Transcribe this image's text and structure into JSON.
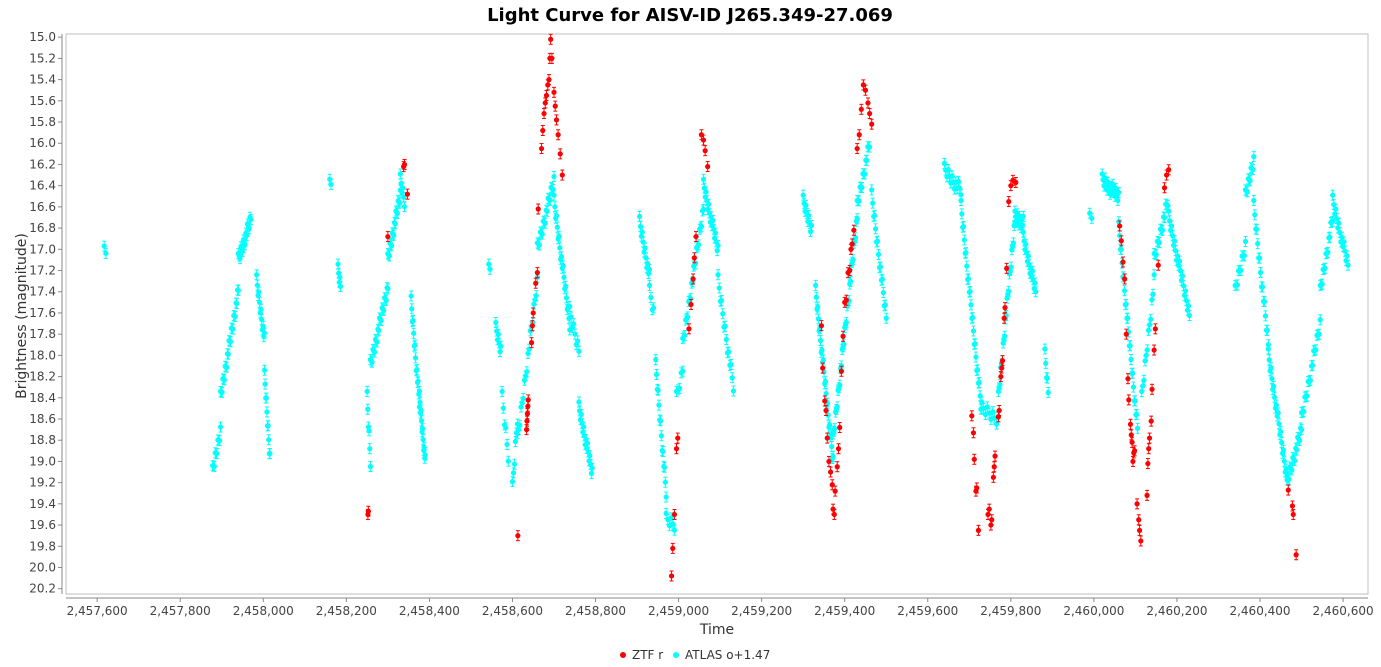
{
  "chart_data": {
    "type": "scatter",
    "title": "Light Curve for AISV-ID J265.349-27.069",
    "xlabel": "Time",
    "ylabel": "Brightness (magnitude)",
    "xlim": [
      2457525,
      2460660
    ],
    "ylim": [
      20.25,
      14.97
    ],
    "y_inverted": true,
    "x_ticks": [
      2457600,
      2457800,
      2458000,
      2458200,
      2458400,
      2458600,
      2458800,
      2459000,
      2459200,
      2459400,
      2459600,
      2459800,
      2460000,
      2460200,
      2460400,
      2460600
    ],
    "x_tick_labels": [
      "2,457,600",
      "2,457,800",
      "2,458,000",
      "2,458,200",
      "2,458,400",
      "2,458,600",
      "2,458,800",
      "2,459,000",
      "2,459,200",
      "2,459,400",
      "2,459,600",
      "2,459,800",
      "2,460,000",
      "2,460,200",
      "2,460,400",
      "2,460,600"
    ],
    "y_ticks": [
      15.0,
      15.2,
      15.4,
      15.6,
      15.8,
      16.0,
      16.2,
      16.4,
      16.6,
      16.8,
      17.0,
      17.2,
      17.4,
      17.6,
      17.8,
      18.0,
      18.2,
      18.4,
      18.6,
      18.8,
      19.0,
      19.2,
      19.4,
      19.6,
      19.8,
      20.0,
      20.2
    ],
    "y_tick_labels": [
      "15.0",
      "15.2",
      "15.4",
      "15.6",
      "15.8",
      "16.0",
      "16.2",
      "16.4",
      "16.6",
      "16.8",
      "17.0",
      "17.2",
      "17.4",
      "17.6",
      "17.8",
      "18.0",
      "18.2",
      "18.4",
      "18.6",
      "18.8",
      "19.0",
      "19.2",
      "19.4",
      "19.6",
      "19.8",
      "20.0",
      "20.2"
    ],
    "grid": false,
    "legend_position": "bottom-center",
    "series": [
      {
        "name": "ZTF r",
        "color": "#ff0000",
        "points": [
          [
            2458252,
            19.5
          ],
          [
            2458253,
            19.47
          ],
          [
            2458300,
            16.88
          ],
          [
            2458338,
            16.22
          ],
          [
            2458340,
            16.2
          ],
          [
            2458347,
            16.48
          ],
          [
            2458613,
            19.7
          ],
          [
            2458634,
            18.7
          ],
          [
            2458635,
            18.62
          ],
          [
            2458636,
            18.55
          ],
          [
            2458637,
            18.48
          ],
          [
            2458638,
            18.42
          ],
          [
            2458646,
            17.88
          ],
          [
            2458648,
            17.72
          ],
          [
            2458650,
            17.6
          ],
          [
            2458656,
            17.32
          ],
          [
            2458660,
            17.22
          ],
          [
            2458662,
            16.62
          ],
          [
            2458670,
            16.05
          ],
          [
            2458673,
            15.88
          ],
          [
            2458676,
            15.72
          ],
          [
            2458679,
            15.62
          ],
          [
            2458682,
            15.55
          ],
          [
            2458685,
            15.45
          ],
          [
            2458688,
            15.4
          ],
          [
            2458690,
            15.2
          ],
          [
            2458692,
            15.02
          ],
          [
            2458695,
            15.2
          ],
          [
            2458700,
            15.52
          ],
          [
            2458703,
            15.65
          ],
          [
            2458706,
            15.78
          ],
          [
            2458710,
            15.92
          ],
          [
            2458715,
            16.1
          ],
          [
            2458720,
            16.3
          ],
          [
            2458983,
            20.08
          ],
          [
            2458986,
            19.82
          ],
          [
            2458990,
            19.5
          ],
          [
            2458995,
            18.88
          ],
          [
            2458998,
            18.78
          ],
          [
            2459025,
            17.75
          ],
          [
            2459030,
            17.52
          ],
          [
            2459035,
            17.28
          ],
          [
            2459038,
            17.08
          ],
          [
            2459042,
            16.88
          ],
          [
            2459055,
            15.92
          ],
          [
            2459060,
            15.97
          ],
          [
            2459064,
            16.07
          ],
          [
            2459070,
            16.22
          ],
          [
            2459344,
            17.72
          ],
          [
            2459347,
            18.12
          ],
          [
            2459352,
            18.43
          ],
          [
            2459355,
            18.52
          ],
          [
            2459358,
            18.78
          ],
          [
            2459362,
            19.0
          ],
          [
            2459366,
            19.1
          ],
          [
            2459370,
            19.22
          ],
          [
            2459372,
            19.45
          ],
          [
            2459375,
            19.5
          ],
          [
            2459377,
            19.28
          ],
          [
            2459382,
            19.05
          ],
          [
            2459385,
            18.88
          ],
          [
            2459388,
            18.68
          ],
          [
            2459392,
            18.15
          ],
          [
            2459396,
            17.82
          ],
          [
            2459400,
            17.5
          ],
          [
            2459404,
            17.48
          ],
          [
            2459408,
            17.22
          ],
          [
            2459412,
            17.2
          ],
          [
            2459415,
            17.0
          ],
          [
            2459418,
            16.95
          ],
          [
            2459422,
            16.82
          ],
          [
            2459430,
            16.05
          ],
          [
            2459435,
            15.92
          ],
          [
            2459440,
            15.68
          ],
          [
            2459445,
            15.45
          ],
          [
            2459450,
            15.5
          ],
          [
            2459456,
            15.62
          ],
          [
            2459460,
            15.72
          ],
          [
            2459465,
            15.82
          ],
          [
            2459706,
            18.57
          ],
          [
            2459710,
            18.73
          ],
          [
            2459712,
            18.98
          ],
          [
            2459716,
            19.28
          ],
          [
            2459718,
            19.25
          ],
          [
            2459722,
            19.65
          ],
          [
            2459745,
            19.5
          ],
          [
            2459748,
            19.45
          ],
          [
            2459752,
            19.6
          ],
          [
            2459754,
            19.55
          ],
          [
            2459758,
            19.15
          ],
          [
            2459760,
            19.05
          ],
          [
            2459762,
            18.95
          ],
          [
            2459770,
            18.58
          ],
          [
            2459772,
            18.52
          ],
          [
            2459776,
            18.2
          ],
          [
            2459778,
            18.12
          ],
          [
            2459780,
            18.05
          ],
          [
            2459784,
            17.65
          ],
          [
            2459786,
            17.55
          ],
          [
            2459790,
            17.18
          ],
          [
            2459795,
            16.55
          ],
          [
            2459800,
            16.4
          ],
          [
            2459805,
            16.35
          ],
          [
            2459812,
            16.37
          ],
          [
            2460062,
            16.78
          ],
          [
            2460066,
            16.92
          ],
          [
            2460070,
            17.12
          ],
          [
            2460074,
            17.28
          ],
          [
            2460078,
            17.8
          ],
          [
            2460082,
            18.22
          ],
          [
            2460084,
            18.42
          ],
          [
            2460088,
            18.65
          ],
          [
            2460090,
            18.75
          ],
          [
            2460092,
            18.82
          ],
          [
            2460094,
            19.0
          ],
          [
            2460096,
            18.92
          ],
          [
            2460098,
            18.9
          ],
          [
            2460104,
            19.4
          ],
          [
            2460108,
            19.55
          ],
          [
            2460110,
            19.65
          ],
          [
            2460113,
            19.75
          ],
          [
            2460128,
            19.32
          ],
          [
            2460130,
            19.02
          ],
          [
            2460132,
            18.88
          ],
          [
            2460134,
            18.78
          ],
          [
            2460138,
            18.62
          ],
          [
            2460140,
            18.32
          ],
          [
            2460145,
            17.95
          ],
          [
            2460148,
            17.75
          ],
          [
            2460155,
            17.15
          ],
          [
            2460170,
            16.42
          ],
          [
            2460175,
            16.3
          ],
          [
            2460180,
            16.25
          ],
          [
            2460468,
            19.27
          ],
          [
            2460478,
            19.42
          ],
          [
            2460480,
            19.5
          ],
          [
            2460487,
            19.88
          ]
        ]
      },
      {
        "name": "ATLAS o+1.47",
        "color": "#00ffff",
        "segments": [
          {
            "t0": 2457617,
            "t1": 2457621,
            "m0": 17.03,
            "m1": 17.05,
            "n": 2
          },
          {
            "t0": 2457878,
            "t1": 2457897,
            "m0": 19.1,
            "m1": 18.7,
            "n": 10
          },
          {
            "t0": 2457897,
            "t1": 2457940,
            "m0": 18.4,
            "m1": 17.4,
            "n": 24
          },
          {
            "t0": 2457940,
            "t1": 2457970,
            "m0": 17.1,
            "m1": 16.72,
            "n": 16
          },
          {
            "t0": 2457984,
            "t1": 2458003,
            "m0": 17.3,
            "m1": 17.85,
            "n": 12
          },
          {
            "t0": 2458003,
            "t1": 2458016,
            "m0": 18.2,
            "m1": 18.95,
            "n": 10
          },
          {
            "t0": 2458160,
            "t1": 2458163,
            "m0": 16.4,
            "m1": 16.4,
            "n": 2
          },
          {
            "t0": 2458180,
            "t1": 2458186,
            "m0": 17.2,
            "m1": 17.35,
            "n": 5
          },
          {
            "t0": 2458250,
            "t1": 2458258,
            "m0": 18.4,
            "m1": 19.0,
            "n": 6
          },
          {
            "t0": 2458258,
            "t1": 2458300,
            "m0": 18.1,
            "m1": 17.35,
            "n": 22
          },
          {
            "t0": 2458300,
            "t1": 2458330,
            "m0": 17.1,
            "m1": 16.48,
            "n": 18
          },
          {
            "t0": 2458330,
            "t1": 2458340,
            "m0": 16.35,
            "m1": 16.55,
            "n": 6
          },
          {
            "t0": 2458356,
            "t1": 2458376,
            "m0": 17.5,
            "m1": 18.45,
            "n": 14
          },
          {
            "t0": 2458376,
            "t1": 2458390,
            "m0": 18.4,
            "m1": 19.0,
            "n": 12
          },
          {
            "t0": 2458543,
            "t1": 2458546,
            "m0": 17.2,
            "m1": 17.2,
            "n": 2
          },
          {
            "t0": 2458560,
            "t1": 2458572,
            "m0": 17.75,
            "m1": 17.95,
            "n": 7
          },
          {
            "t0": 2458575,
            "t1": 2458590,
            "m0": 18.4,
            "m1": 18.95,
            "n": 6
          },
          {
            "t0": 2458600,
            "t1": 2458612,
            "m0": 19.25,
            "m1": 18.6,
            "n": 6
          },
          {
            "t0": 2458612,
            "t1": 2458660,
            "m0": 18.8,
            "m1": 17.3,
            "n": 18
          },
          {
            "t0": 2458660,
            "t1": 2458700,
            "m0": 17.0,
            "m1": 16.35,
            "n": 18
          },
          {
            "t0": 2458700,
            "t1": 2458738,
            "m0": 16.55,
            "m1": 17.7,
            "n": 20
          },
          {
            "t0": 2458738,
            "t1": 2458760,
            "m0": 17.6,
            "m1": 17.95,
            "n": 8
          },
          {
            "t0": 2458760,
            "t1": 2458792,
            "m0": 18.5,
            "m1": 19.1,
            "n": 18
          },
          {
            "t0": 2458906,
            "t1": 2458930,
            "m0": 16.75,
            "m1": 17.25,
            "n": 12
          },
          {
            "t0": 2458930,
            "t1": 2458940,
            "m0": 17.4,
            "m1": 17.6,
            "n": 4
          },
          {
            "t0": 2458945,
            "t1": 2458970,
            "m0": 18.1,
            "m1": 19.3,
            "n": 14
          },
          {
            "t0": 2458970,
            "t1": 2458990,
            "m0": 19.55,
            "m1": 19.6,
            "n": 6
          },
          {
            "t0": 2458995,
            "t1": 2459010,
            "m0": 18.4,
            "m1": 18.15,
            "n": 5
          },
          {
            "t0": 2459010,
            "t1": 2459060,
            "m0": 17.9,
            "m1": 16.6,
            "n": 22
          },
          {
            "t0": 2459060,
            "t1": 2459095,
            "m0": 16.4,
            "m1": 17.0,
            "n": 18
          },
          {
            "t0": 2459095,
            "t1": 2459132,
            "m0": 17.3,
            "m1": 18.3,
            "n": 14
          },
          {
            "t0": 2459300,
            "t1": 2459320,
            "m0": 16.55,
            "m1": 16.8,
            "n": 10
          },
          {
            "t0": 2459330,
            "t1": 2459372,
            "m0": 17.4,
            "m1": 19.0,
            "n": 26
          },
          {
            "t0": 2459372,
            "t1": 2459430,
            "m0": 18.8,
            "m1": 16.7,
            "n": 30
          },
          {
            "t0": 2459430,
            "t1": 2459460,
            "m0": 16.6,
            "m1": 16.0,
            "n": 14
          },
          {
            "t0": 2459465,
            "t1": 2459500,
            "m0": 16.5,
            "m1": 17.65,
            "n": 16
          },
          {
            "t0": 2459640,
            "t1": 2459680,
            "m0": 16.25,
            "m1": 16.45,
            "n": 14
          },
          {
            "t0": 2459680,
            "t1": 2459730,
            "m0": 16.6,
            "m1": 18.55,
            "n": 26
          },
          {
            "t0": 2459730,
            "t1": 2459770,
            "m0": 18.5,
            "m1": 18.6,
            "n": 10
          },
          {
            "t0": 2459770,
            "t1": 2459810,
            "m0": 18.4,
            "m1": 16.72,
            "n": 22
          },
          {
            "t0": 2459810,
            "t1": 2459830,
            "m0": 16.7,
            "m1": 16.75,
            "n": 12
          },
          {
            "t0": 2459830,
            "t1": 2459860,
            "m0": 16.9,
            "m1": 17.4,
            "n": 16
          },
          {
            "t0": 2459882,
            "t1": 2459890,
            "m0": 18.0,
            "m1": 18.35,
            "n": 5
          },
          {
            "t0": 2459990,
            "t1": 2459995,
            "m0": 16.72,
            "m1": 16.72,
            "n": 2
          },
          {
            "t0": 2460020,
            "t1": 2460060,
            "m0": 16.35,
            "m1": 16.5,
            "n": 18
          },
          {
            "t0": 2460060,
            "t1": 2460105,
            "m0": 16.8,
            "m1": 18.7,
            "n": 24
          },
          {
            "t0": 2460115,
            "t1": 2460145,
            "m0": 18.4,
            "m1": 17.3,
            "n": 12
          },
          {
            "t0": 2460145,
            "t1": 2460178,
            "m0": 17.1,
            "m1": 16.55,
            "n": 14
          },
          {
            "t0": 2460180,
            "t1": 2460230,
            "m0": 16.7,
            "m1": 17.6,
            "n": 22
          },
          {
            "t0": 2460340,
            "t1": 2460365,
            "m0": 17.4,
            "m1": 16.95,
            "n": 10
          },
          {
            "t0": 2460365,
            "t1": 2460385,
            "m0": 16.5,
            "m1": 16.15,
            "n": 10
          },
          {
            "t0": 2460385,
            "t1": 2460420,
            "m0": 16.6,
            "m1": 17.9,
            "n": 16
          },
          {
            "t0": 2460420,
            "t1": 2460465,
            "m0": 18.0,
            "m1": 19.15,
            "n": 22
          },
          {
            "t0": 2460465,
            "t1": 2460500,
            "m0": 19.2,
            "m1": 18.7,
            "n": 16
          },
          {
            "t0": 2460500,
            "t1": 2460545,
            "m0": 18.6,
            "m1": 17.7,
            "n": 18
          },
          {
            "t0": 2460545,
            "t1": 2460575,
            "m0": 17.4,
            "m1": 16.7,
            "n": 14
          },
          {
            "t0": 2460575,
            "t1": 2460612,
            "m0": 16.55,
            "m1": 17.15,
            "n": 16
          }
        ]
      }
    ]
  }
}
